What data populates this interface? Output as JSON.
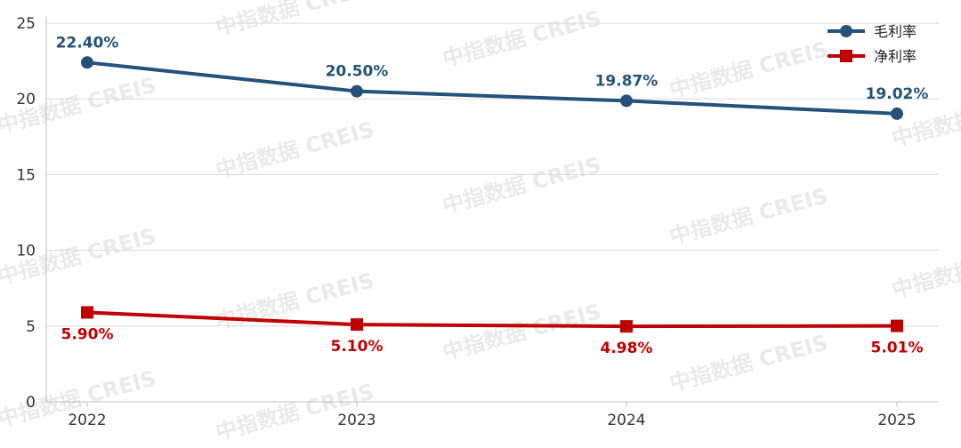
{
  "chart_data": {
    "type": "line",
    "categories": [
      "2022",
      "2023",
      "2024",
      "2025"
    ],
    "ylim": [
      0,
      25
    ],
    "yticks": [
      0,
      5,
      10,
      15,
      20,
      25
    ],
    "grid": "horizontal",
    "legend_position": "top-right",
    "watermark": "中指数据 CREIS",
    "series": [
      {
        "name": "毛利率",
        "values": [
          22.4,
          20.5,
          19.87,
          19.02
        ],
        "labels": [
          "22.40%",
          "20.50%",
          "19.87%",
          "19.02%"
        ],
        "color": "#24527a",
        "marker": "circle",
        "label_position": "above"
      },
      {
        "name": "净利率",
        "values": [
          5.9,
          5.1,
          4.98,
          5.01
        ],
        "labels": [
          "5.90%",
          "5.10%",
          "4.98%",
          "5.01%"
        ],
        "color": "#c00000",
        "marker": "square",
        "label_position": "below"
      }
    ]
  }
}
